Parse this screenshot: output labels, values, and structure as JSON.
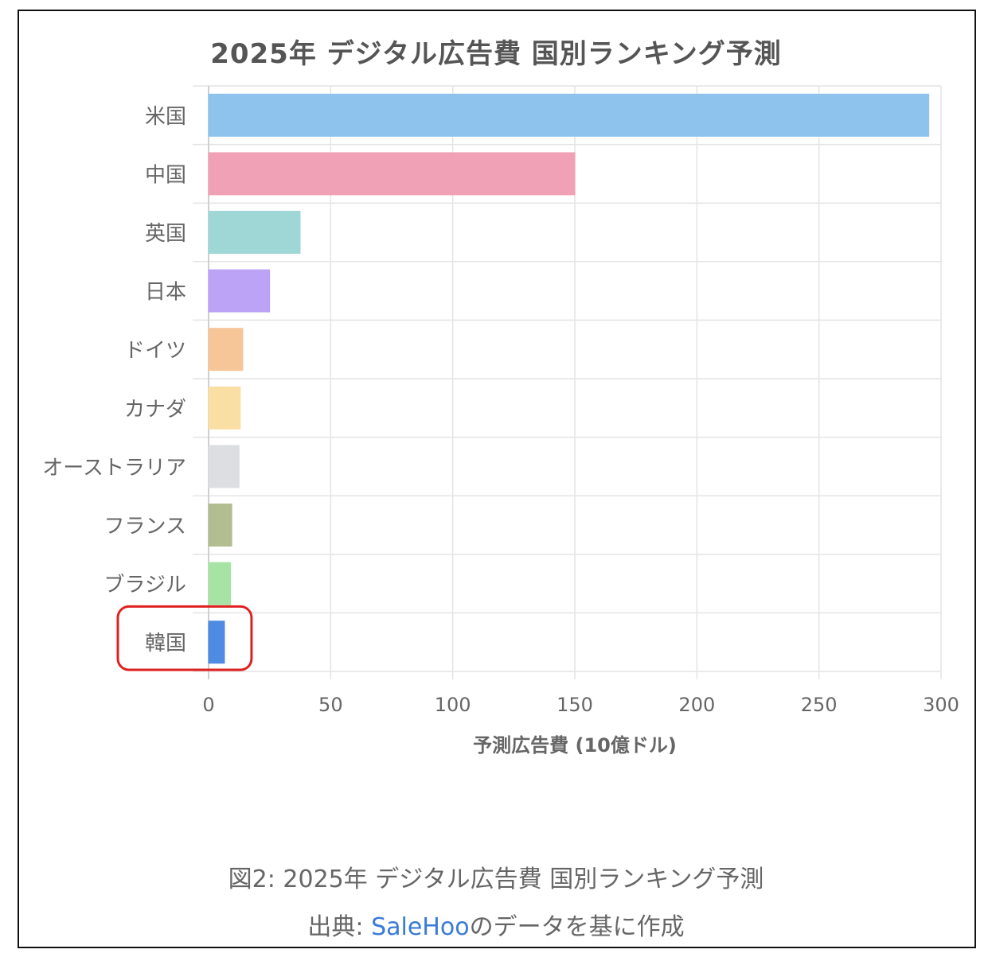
{
  "chart_data": {
    "type": "bar",
    "orientation": "horizontal",
    "title": "2025年 デジタル広告費 国別ランキング予測",
    "xlabel": "予測広告費 (10億ドル)",
    "ylabel": "",
    "xlim": [
      0,
      300
    ],
    "xticks": [
      0,
      50,
      100,
      150,
      200,
      250,
      300
    ],
    "grid": true,
    "categories": [
      "米国",
      "中国",
      "英国",
      "日本",
      "ドイツ",
      "カナダ",
      "オーストラリア",
      "フランス",
      "ブラジル",
      "韓国"
    ],
    "values": [
      295,
      150,
      37.5,
      25,
      14,
      13,
      12.5,
      9.5,
      9,
      6.5
    ],
    "colors": [
      "#8ec3ee",
      "#f1a1b5",
      "#9fd7d6",
      "#bca3f5",
      "#f6c598",
      "#fadfa4",
      "#dddee1",
      "#b2bd91",
      "#a8e3a6",
      "#4f8be3"
    ],
    "highlight": {
      "category": "韓国",
      "color": "#e02020"
    }
  },
  "caption": {
    "line1": "図2: 2025年 デジタル広告費 国別ランキング予測",
    "source_prefix": "出典: ",
    "source_link": "SaleHoo",
    "source_suffix": "のデータを基に作成"
  }
}
